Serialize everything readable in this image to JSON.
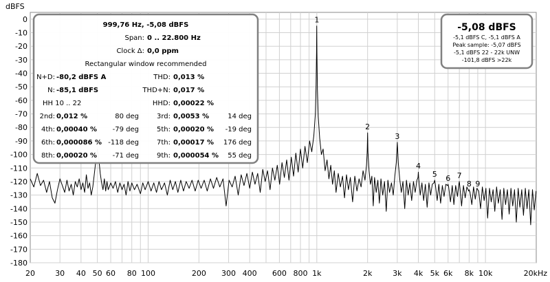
{
  "y_unit_label": "dBFS",
  "info_box": {
    "fundamental": "999,76 Hz, -5,08 dBFS",
    "span_label": "Span:",
    "span_value": "0 .. 22.800 Hz",
    "clock_label": "Clock Δ:",
    "clock_value": "0,0 ppm",
    "window_note": "Rectangular window recommended",
    "rows": [
      {
        "l1": "N+D:",
        "v1": "-80,2 dBFS A",
        "l2": "THD:",
        "v2": "0,013 %"
      },
      {
        "l1": "N:",
        "v1": "-85,1 dBFS",
        "l2": "THD+N:",
        "v2": "0,017 %"
      },
      {
        "l1": "HH 10 .. 22",
        "v1": "",
        "l2": "HHD:",
        "v2": "0,00022 %"
      }
    ],
    "harmonics": [
      {
        "l1": "2nd:",
        "v1": "0,012 %",
        "p1": "80 deg",
        "l2": "3rd:",
        "v2": "0,0053 %",
        "p2": "14 deg"
      },
      {
        "l1": "4th:",
        "v1": "0,00040 %",
        "p1": "-79 deg",
        "l2": "5th:",
        "v2": "0,00020 %",
        "p2": "-19 deg"
      },
      {
        "l1": "6th:",
        "v1": "0,000086 %",
        "p1": "-118 deg",
        "l2": "7th:",
        "v2": "0,00017 %",
        "p2": "176 deg"
      },
      {
        "l1": "8th:",
        "v1": "0,00020 %",
        "p1": "-71 deg",
        "l2": "9th:",
        "v2": "0,000054 %",
        "p2": "55 deg"
      }
    ]
  },
  "level_box": {
    "main": "-5,08 dBFS",
    "lines": [
      "-5,1 dBFS C, -5,1 dBFS A",
      "Peak sample: -5,07 dBFS",
      "-5,1 dBFS 22 - 22k UNW",
      "-101,8 dBFS >22k"
    ]
  },
  "chart_data": {
    "type": "line",
    "x_scale": "log",
    "xlim": [
      20,
      20000
    ],
    "ylim": [
      -180,
      5
    ],
    "grid": true,
    "xlabel": "",
    "ylabel": "dBFS",
    "x_ticks": [
      {
        "v": 20,
        "label": "20"
      },
      {
        "v": 30,
        "label": "30"
      },
      {
        "v": 40,
        "label": "40"
      },
      {
        "v": 50,
        "label": "50"
      },
      {
        "v": 60,
        "label": "60"
      },
      {
        "v": 80,
        "label": "80"
      },
      {
        "v": 100,
        "label": "100"
      },
      {
        "v": 200,
        "label": "200"
      },
      {
        "v": 300,
        "label": "300"
      },
      {
        "v": 400,
        "label": "400"
      },
      {
        "v": 600,
        "label": "600"
      },
      {
        "v": 800,
        "label": "800"
      },
      {
        "v": 1000,
        "label": "1k"
      },
      {
        "v": 2000,
        "label": "2k"
      },
      {
        "v": 3000,
        "label": "3k"
      },
      {
        "v": 4000,
        "label": "4k"
      },
      {
        "v": 5000,
        "label": "5k"
      },
      {
        "v": 6000,
        "label": "6k"
      },
      {
        "v": 8000,
        "label": "8k"
      },
      {
        "v": 10000,
        "label": "10k"
      },
      {
        "v": 20000,
        "label": "20kHz"
      }
    ],
    "y_ticks": [
      0,
      -10,
      -20,
      -30,
      -40,
      -50,
      -60,
      -70,
      -80,
      -90,
      -100,
      -110,
      -120,
      -130,
      -140,
      -150,
      -160,
      -170,
      -180
    ],
    "harmonic_markers": [
      {
        "label": "1",
        "f": 1000,
        "db": -5
      },
      {
        "label": "2",
        "f": 2000,
        "db": -84
      },
      {
        "label": "3",
        "f": 3000,
        "db": -91
      },
      {
        "label": "4",
        "f": 4000,
        "db": -113
      },
      {
        "label": "5",
        "f": 5000,
        "db": -119
      },
      {
        "label": "6",
        "f": 6000,
        "db": -122
      },
      {
        "label": "7",
        "f": 7000,
        "db": -120
      },
      {
        "label": "8",
        "f": 8000,
        "db": -126
      },
      {
        "label": "9",
        "f": 9000,
        "db": -126
      }
    ],
    "series": [
      {
        "color": "#000000",
        "points": [
          [
            20,
            -118
          ],
          [
            21,
            -124
          ],
          [
            22,
            -114
          ],
          [
            23,
            -123
          ],
          [
            24,
            -119
          ],
          [
            25,
            -128
          ],
          [
            26,
            -120
          ],
          [
            27,
            -132
          ],
          [
            28,
            -136
          ],
          [
            29,
            -126
          ],
          [
            30,
            -118
          ],
          [
            31,
            -123
          ],
          [
            32,
            -128
          ],
          [
            33,
            -119
          ],
          [
            34,
            -127
          ],
          [
            35,
            -122
          ],
          [
            36,
            -130
          ],
          [
            37,
            -120
          ],
          [
            38,
            -124
          ],
          [
            39,
            -118
          ],
          [
            40,
            -126
          ],
          [
            41,
            -121
          ],
          [
            42,
            -128
          ],
          [
            43,
            -115
          ],
          [
            44,
            -125
          ],
          [
            45,
            -121
          ],
          [
            46,
            -130
          ],
          [
            47,
            -124
          ],
          [
            48,
            -114
          ],
          [
            49,
            -104
          ],
          [
            50,
            -96
          ],
          [
            51,
            -103
          ],
          [
            52,
            -114
          ],
          [
            53,
            -121
          ],
          [
            54,
            -126
          ],
          [
            55,
            -118
          ],
          [
            56,
            -127
          ],
          [
            57,
            -120
          ],
          [
            58,
            -126
          ],
          [
            60,
            -121
          ],
          [
            62,
            -125
          ],
          [
            64,
            -120
          ],
          [
            66,
            -128
          ],
          [
            68,
            -121
          ],
          [
            70,
            -126
          ],
          [
            72,
            -122
          ],
          [
            74,
            -130
          ],
          [
            76,
            -120
          ],
          [
            78,
            -127
          ],
          [
            80,
            -121
          ],
          [
            83,
            -126
          ],
          [
            86,
            -122
          ],
          [
            90,
            -129
          ],
          [
            93,
            -121
          ],
          [
            96,
            -126
          ],
          [
            100,
            -120
          ],
          [
            104,
            -127
          ],
          [
            108,
            -121
          ],
          [
            112,
            -128
          ],
          [
            116,
            -120
          ],
          [
            120,
            -126
          ],
          [
            125,
            -121
          ],
          [
            130,
            -130
          ],
          [
            135,
            -119
          ],
          [
            140,
            -126
          ],
          [
            145,
            -120
          ],
          [
            150,
            -128
          ],
          [
            156,
            -119
          ],
          [
            162,
            -127
          ],
          [
            168,
            -120
          ],
          [
            175,
            -125
          ],
          [
            182,
            -119
          ],
          [
            190,
            -127
          ],
          [
            198,
            -119
          ],
          [
            206,
            -125
          ],
          [
            215,
            -119
          ],
          [
            224,
            -127
          ],
          [
            234,
            -118
          ],
          [
            244,
            -125
          ],
          [
            255,
            -117
          ],
          [
            266,
            -124
          ],
          [
            278,
            -118
          ],
          [
            290,
            -138
          ],
          [
            302,
            -119
          ],
          [
            315,
            -124
          ],
          [
            328,
            -116
          ],
          [
            342,
            -130
          ],
          [
            356,
            -115
          ],
          [
            370,
            -123
          ],
          [
            385,
            -114
          ],
          [
            400,
            -125
          ],
          [
            415,
            -113
          ],
          [
            430,
            -122
          ],
          [
            446,
            -114
          ],
          [
            462,
            -128
          ],
          [
            478,
            -111
          ],
          [
            494,
            -120
          ],
          [
            510,
            -112
          ],
          [
            528,
            -126
          ],
          [
            546,
            -110
          ],
          [
            564,
            -119
          ],
          [
            583,
            -108
          ],
          [
            602,
            -122
          ],
          [
            622,
            -106
          ],
          [
            642,
            -117
          ],
          [
            663,
            -104
          ],
          [
            684,
            -119
          ],
          [
            706,
            -102
          ],
          [
            728,
            -116
          ],
          [
            751,
            -99
          ],
          [
            775,
            -113
          ],
          [
            800,
            -96
          ],
          [
            825,
            -110
          ],
          [
            851,
            -94
          ],
          [
            878,
            -106
          ],
          [
            906,
            -90
          ],
          [
            934,
            -98
          ],
          [
            960,
            -86
          ],
          [
            980,
            -70
          ],
          [
            990,
            -50
          ],
          [
            996,
            -25
          ],
          [
            999,
            -5
          ],
          [
            1002,
            -25
          ],
          [
            1008,
            -52
          ],
          [
            1020,
            -72
          ],
          [
            1040,
            -88
          ],
          [
            1065,
            -100
          ],
          [
            1090,
            -96
          ],
          [
            1120,
            -112
          ],
          [
            1150,
            -104
          ],
          [
            1180,
            -118
          ],
          [
            1210,
            -108
          ],
          [
            1240,
            -122
          ],
          [
            1270,
            -112
          ],
          [
            1300,
            -128
          ],
          [
            1340,
            -114
          ],
          [
            1380,
            -124
          ],
          [
            1420,
            -116
          ],
          [
            1460,
            -132
          ],
          [
            1500,
            -115
          ],
          [
            1540,
            -126
          ],
          [
            1580,
            -117
          ],
          [
            1630,
            -135
          ],
          [
            1680,
            -116
          ],
          [
            1730,
            -127
          ],
          [
            1780,
            -118
          ],
          [
            1830,
            -124
          ],
          [
            1880,
            -112
          ],
          [
            1930,
            -119
          ],
          [
            1970,
            -108
          ],
          [
            1990,
            -98
          ],
          [
            2000,
            -84
          ],
          [
            2010,
            -98
          ],
          [
            2040,
            -112
          ],
          [
            2080,
            -122
          ],
          [
            2120,
            -116
          ],
          [
            2160,
            -138
          ],
          [
            2200,
            -117
          ],
          [
            2250,
            -128
          ],
          [
            2300,
            -119
          ],
          [
            2350,
            -136
          ],
          [
            2400,
            -118
          ],
          [
            2460,
            -130
          ],
          [
            2520,
            -120
          ],
          [
            2580,
            -142
          ],
          [
            2640,
            -119
          ],
          [
            2700,
            -128
          ],
          [
            2770,
            -121
          ],
          [
            2840,
            -130
          ],
          [
            2900,
            -116
          ],
          [
            2960,
            -106
          ],
          [
            3000,
            -91
          ],
          [
            3040,
            -106
          ],
          [
            3100,
            -118
          ],
          [
            3170,
            -128
          ],
          [
            3240,
            -120
          ],
          [
            3320,
            -140
          ],
          [
            3400,
            -119
          ],
          [
            3480,
            -130
          ],
          [
            3560,
            -121
          ],
          [
            3650,
            -134
          ],
          [
            3740,
            -120
          ],
          [
            3830,
            -128
          ],
          [
            3920,
            -119
          ],
          [
            3980,
            -117
          ],
          [
            4000,
            -113
          ],
          [
            4020,
            -118
          ],
          [
            4100,
            -130
          ],
          [
            4200,
            -121
          ],
          [
            4300,
            -134
          ],
          [
            4400,
            -122
          ],
          [
            4510,
            -139
          ],
          [
            4620,
            -121
          ],
          [
            4730,
            -130
          ],
          [
            4840,
            -122
          ],
          [
            4950,
            -121
          ],
          [
            5000,
            -119
          ],
          [
            5050,
            -123
          ],
          [
            5170,
            -134
          ],
          [
            5290,
            -122
          ],
          [
            5420,
            -136
          ],
          [
            5550,
            -123
          ],
          [
            5680,
            -131
          ],
          [
            5820,
            -122
          ],
          [
            5960,
            -123
          ],
          [
            6000,
            -122
          ],
          [
            6050,
            -124
          ],
          [
            6200,
            -135
          ],
          [
            6350,
            -123
          ],
          [
            6500,
            -137
          ],
          [
            6660,
            -123
          ],
          [
            6820,
            -131
          ],
          [
            6950,
            -122
          ],
          [
            7000,
            -120
          ],
          [
            7050,
            -124
          ],
          [
            7220,
            -138
          ],
          [
            7400,
            -123
          ],
          [
            7580,
            -132
          ],
          [
            7760,
            -124
          ],
          [
            7950,
            -127
          ],
          [
            8000,
            -126
          ],
          [
            8100,
            -128
          ],
          [
            8300,
            -137
          ],
          [
            8500,
            -124
          ],
          [
            8700,
            -133
          ],
          [
            8900,
            -125
          ],
          [
            9000,
            -126
          ],
          [
            9120,
            -127
          ],
          [
            9350,
            -140
          ],
          [
            9580,
            -124
          ],
          [
            9820,
            -134
          ],
          [
            10060,
            -125
          ],
          [
            10300,
            -147
          ],
          [
            10560,
            -125
          ],
          [
            10820,
            -135
          ],
          [
            11090,
            -126
          ],
          [
            11360,
            -142
          ],
          [
            11640,
            -124
          ],
          [
            11930,
            -136
          ],
          [
            12230,
            -126
          ],
          [
            12530,
            -148
          ],
          [
            12840,
            -125
          ],
          [
            13160,
            -137
          ],
          [
            13480,
            -126
          ],
          [
            13820,
            -144
          ],
          [
            14160,
            -125
          ],
          [
            14510,
            -138
          ],
          [
            14870,
            -126
          ],
          [
            15240,
            -150
          ],
          [
            15620,
            -125
          ],
          [
            16000,
            -139
          ],
          [
            16400,
            -126
          ],
          [
            16800,
            -145
          ],
          [
            17220,
            -125
          ],
          [
            17640,
            -140
          ],
          [
            18080,
            -126
          ],
          [
            18530,
            -152
          ],
          [
            18990,
            -126
          ],
          [
            19460,
            -141
          ],
          [
            19940,
            -127
          ]
        ]
      }
    ]
  }
}
